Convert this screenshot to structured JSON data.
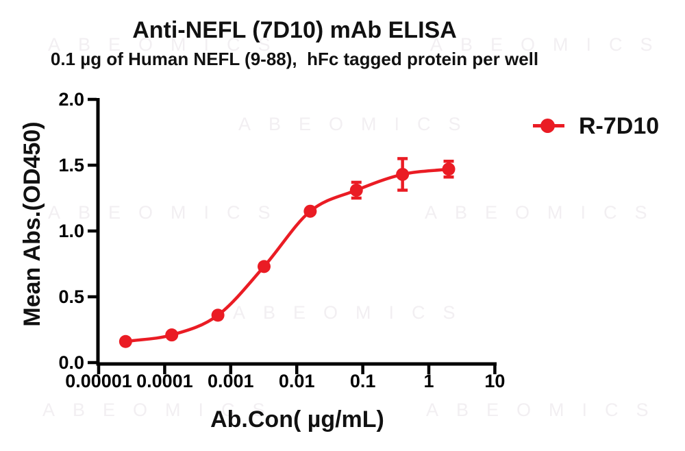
{
  "figure": {
    "title": "Anti-NEFL (7D10) mAb ELISA",
    "subtitle": "0.1 µg of Human NEFL (9-88),  hFc tagged protein per well"
  },
  "watermark": {
    "text": "ABEOMICS",
    "color": "#f2eff2"
  },
  "legend": {
    "label": "R-7D10",
    "marker_color": "#ea1c24",
    "marker": "circle-on-line"
  },
  "chart_data": {
    "type": "line",
    "title": "Anti-NEFL (7D10) mAb ELISA",
    "subtitle": "0.1 µg of Human NEFL (9-88),  hFc tagged protein per well",
    "xlabel": "Ab.Con( µg/mL)",
    "ylabel": "Mean Abs.(OD450)",
    "x_scale": "log10",
    "xlim": [
      1e-05,
      10
    ],
    "ylim": [
      0,
      2.0
    ],
    "x_ticks": [
      1e-05,
      0.0001,
      0.001,
      0.01,
      0.1,
      1,
      10
    ],
    "x_tick_labels": [
      "0.00001",
      "0.0001",
      "0.001",
      "0.01",
      "0.1",
      "1",
      "10"
    ],
    "y_ticks": [
      0.0,
      0.5,
      1.0,
      1.5,
      2.0
    ],
    "y_tick_labels": [
      "0.0",
      "0.5",
      "1.0",
      "1.5",
      "2.0"
    ],
    "grid": false,
    "legend_position": "right-of-plot-top",
    "axis_color": "#000000",
    "series": [
      {
        "name": "R-7D10",
        "color": "#ea1c24",
        "marker": "circle",
        "curve": "sigmoid-4PL",
        "x": [
          2.56e-05,
          0.000128,
          0.00064,
          0.0032,
          0.016,
          0.08,
          0.4,
          2
        ],
        "y": [
          0.16,
          0.21,
          0.36,
          0.73,
          1.15,
          1.31,
          1.43,
          1.47
        ],
        "yerr": [
          0,
          0,
          0,
          0,
          0,
          0.06,
          0.12,
          0.06
        ]
      }
    ]
  }
}
